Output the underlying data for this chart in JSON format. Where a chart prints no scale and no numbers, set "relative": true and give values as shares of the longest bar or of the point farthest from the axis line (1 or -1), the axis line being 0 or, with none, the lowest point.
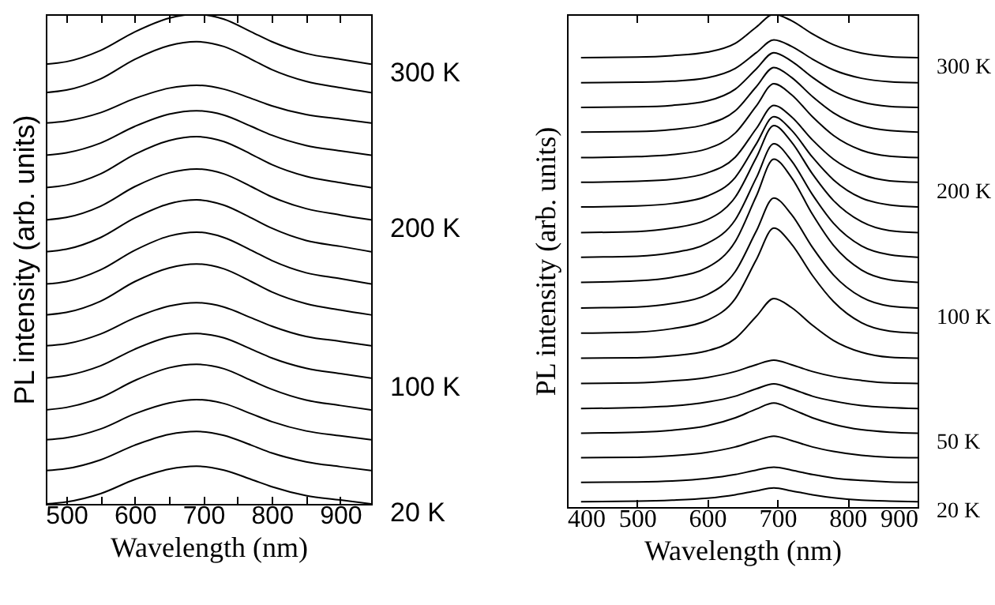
{
  "chart_data": [
    {
      "type": "line",
      "relative": true,
      "xlabel": "Wavelength (nm)",
      "ylabel": "PL intensity (arb. units)",
      "xlim": [
        470,
        945
      ],
      "xticks": [
        500,
        {
          "value": 550,
          "label": null
        },
        600,
        {
          "value": 650,
          "label": null
        },
        700,
        {
          "value": 750,
          "label": null
        },
        800,
        {
          "value": 850,
          "label": null
        },
        900
      ],
      "x": [
        470,
        500,
        550,
        600,
        650,
        690,
        730,
        770,
        800,
        850,
        900,
        945
      ],
      "series": [
        {
          "name": "300 K",
          "color": "#000000",
          "values": [
            0.898,
            0.903,
            0.926,
            0.964,
            0.992,
            1.0,
            0.99,
            0.964,
            0.944,
            0.92,
            0.908,
            0.898
          ]
        },
        {
          "color": "#000000",
          "values": [
            0.84,
            0.845,
            0.868,
            0.908,
            0.936,
            0.944,
            0.934,
            0.908,
            0.887,
            0.863,
            0.85,
            0.84
          ]
        },
        {
          "color": "#000000",
          "values": [
            0.778,
            0.782,
            0.799,
            0.828,
            0.849,
            0.855,
            0.847,
            0.828,
            0.813,
            0.795,
            0.786,
            0.778
          ]
        },
        {
          "color": "#000000",
          "values": [
            0.712,
            0.717,
            0.737,
            0.771,
            0.796,
            0.803,
            0.794,
            0.771,
            0.753,
            0.732,
            0.721,
            0.712
          ]
        },
        {
          "color": "#000000",
          "values": [
            0.646,
            0.651,
            0.674,
            0.714,
            0.742,
            0.75,
            0.74,
            0.714,
            0.693,
            0.669,
            0.656,
            0.646
          ]
        },
        {
          "name": "200 K",
          "color": "#000000",
          "values": [
            0.58,
            0.585,
            0.608,
            0.648,
            0.676,
            0.684,
            0.674,
            0.648,
            0.627,
            0.603,
            0.59,
            0.58
          ]
        },
        {
          "color": "#000000",
          "values": [
            0.515,
            0.52,
            0.544,
            0.584,
            0.613,
            0.621,
            0.61,
            0.584,
            0.563,
            0.538,
            0.526,
            0.515
          ]
        },
        {
          "color": "#000000",
          "values": [
            0.449,
            0.454,
            0.478,
            0.518,
            0.547,
            0.555,
            0.544,
            0.518,
            0.497,
            0.472,
            0.46,
            0.449
          ]
        },
        {
          "color": "#000000",
          "values": [
            0.386,
            0.391,
            0.414,
            0.454,
            0.482,
            0.49,
            0.48,
            0.454,
            0.433,
            0.409,
            0.396,
            0.386
          ]
        },
        {
          "color": "#000000",
          "values": [
            0.323,
            0.327,
            0.347,
            0.38,
            0.404,
            0.411,
            0.402,
            0.38,
            0.363,
            0.342,
            0.332,
            0.323
          ]
        },
        {
          "name": "100 K",
          "color": "#000000",
          "values": [
            0.257,
            0.262,
            0.282,
            0.316,
            0.341,
            0.348,
            0.339,
            0.316,
            0.298,
            0.277,
            0.266,
            0.257
          ]
        },
        {
          "color": "#000000",
          "values": [
            0.192,
            0.197,
            0.217,
            0.252,
            0.278,
            0.285,
            0.276,
            0.252,
            0.234,
            0.212,
            0.201,
            0.192
          ]
        },
        {
          "color": "#000000",
          "values": [
            0.131,
            0.135,
            0.153,
            0.184,
            0.206,
            0.213,
            0.205,
            0.184,
            0.168,
            0.149,
            0.139,
            0.131
          ]
        },
        {
          "color": "#000000",
          "values": [
            0.068,
            0.072,
            0.09,
            0.12,
            0.142,
            0.148,
            0.14,
            0.12,
            0.104,
            0.086,
            0.076,
            0.068
          ]
        },
        {
          "name": "20 K",
          "color": "#000000",
          "values": [
            0.0,
            0.004,
            0.021,
            0.05,
            0.071,
            0.077,
            0.069,
            0.05,
            0.035,
            0.017,
            0.008,
            0.0
          ]
        }
      ]
    },
    {
      "type": "line",
      "relative": true,
      "xlabel": "Wavelength (nm)",
      "ylabel": "PL intensity (arb. units)",
      "xlim": [
        400,
        900
      ],
      "xticks": [
        400,
        500,
        600,
        700,
        800,
        900
      ],
      "x": [
        420,
        500,
        550,
        600,
        640,
        670,
        695,
        720,
        750,
        780,
        820,
        860,
        900
      ],
      "series": [
        {
          "name": "300 K",
          "color": "#000000",
          "values": [
            0.912,
            0.913,
            0.916,
            0.923,
            0.941,
            0.974,
            1.0,
            0.987,
            0.96,
            0.938,
            0.921,
            0.914,
            0.912
          ]
        },
        {
          "color": "#000000",
          "values": [
            0.861,
            0.862,
            0.864,
            0.871,
            0.89,
            0.922,
            0.948,
            0.935,
            0.909,
            0.887,
            0.87,
            0.863,
            0.861
          ]
        },
        {
          "color": "#000000",
          "values": [
            0.811,
            0.812,
            0.815,
            0.824,
            0.848,
            0.889,
            0.922,
            0.905,
            0.872,
            0.844,
            0.822,
            0.813,
            0.811
          ]
        },
        {
          "color": "#000000",
          "values": [
            0.761,
            0.762,
            0.766,
            0.777,
            0.804,
            0.853,
            0.892,
            0.872,
            0.833,
            0.8,
            0.774,
            0.764,
            0.761
          ]
        },
        {
          "color": "#000000",
          "values": [
            0.709,
            0.711,
            0.715,
            0.727,
            0.759,
            0.814,
            0.859,
            0.837,
            0.792,
            0.754,
            0.724,
            0.712,
            0.709
          ]
        },
        {
          "name": "200 K",
          "color": "#000000",
          "values": [
            0.659,
            0.661,
            0.665,
            0.678,
            0.71,
            0.768,
            0.815,
            0.792,
            0.745,
            0.706,
            0.675,
            0.662,
            0.659
          ]
        },
        {
          "color": "#000000",
          "values": [
            0.609,
            0.611,
            0.616,
            0.631,
            0.669,
            0.737,
            0.792,
            0.765,
            0.71,
            0.664,
            0.627,
            0.613,
            0.609
          ]
        },
        {
          "color": "#000000",
          "values": [
            0.557,
            0.559,
            0.566,
            0.583,
            0.629,
            0.709,
            0.774,
            0.741,
            0.676,
            0.622,
            0.579,
            0.561,
            0.557
          ]
        },
        {
          "color": "#000000",
          "values": [
            0.507,
            0.509,
            0.516,
            0.535,
            0.583,
            0.668,
            0.737,
            0.703,
            0.634,
            0.576,
            0.53,
            0.512,
            0.507
          ]
        },
        {
          "color": "#000000",
          "values": [
            0.456,
            0.459,
            0.466,
            0.486,
            0.539,
            0.631,
            0.706,
            0.669,
            0.594,
            0.531,
            0.481,
            0.461,
            0.456
          ]
        },
        {
          "name": "100 K",
          "color": "#000000",
          "values": [
            0.404,
            0.406,
            0.413,
            0.431,
            0.478,
            0.56,
            0.627,
            0.594,
            0.527,
            0.471,
            0.426,
            0.408,
            0.404
          ]
        },
        {
          "color": "#000000",
          "values": [
            0.353,
            0.355,
            0.362,
            0.379,
            0.423,
            0.502,
            0.566,
            0.534,
            0.47,
            0.417,
            0.374,
            0.357,
            0.353
          ]
        },
        {
          "color": "#000000",
          "values": [
            0.302,
            0.303,
            0.307,
            0.317,
            0.342,
            0.387,
            0.423,
            0.405,
            0.369,
            0.338,
            0.314,
            0.304,
            0.302
          ]
        },
        {
          "color": "#000000",
          "values": [
            0.251,
            0.252,
            0.256,
            0.263,
            0.275,
            0.289,
            0.298,
            0.289,
            0.275,
            0.265,
            0.257,
            0.252,
            0.251
          ]
        },
        {
          "color": "#000000",
          "values": [
            0.2,
            0.202,
            0.205,
            0.213,
            0.225,
            0.24,
            0.25,
            0.24,
            0.225,
            0.215,
            0.206,
            0.202,
            0.2
          ]
        },
        {
          "name": "50 K",
          "color": "#000000",
          "values": [
            0.15,
            0.152,
            0.156,
            0.165,
            0.181,
            0.199,
            0.211,
            0.199,
            0.181,
            0.168,
            0.157,
            0.152,
            0.15
          ]
        },
        {
          "color": "#000000",
          "values": [
            0.1,
            0.101,
            0.104,
            0.111,
            0.122,
            0.135,
            0.144,
            0.135,
            0.122,
            0.113,
            0.105,
            0.101,
            0.1
          ]
        },
        {
          "color": "#000000",
          "values": [
            0.05,
            0.051,
            0.053,
            0.058,
            0.066,
            0.075,
            0.081,
            0.075,
            0.066,
            0.059,
            0.054,
            0.051,
            0.05
          ]
        },
        {
          "name": "20 K",
          "color": "#000000",
          "values": [
            0.011,
            0.012,
            0.014,
            0.018,
            0.025,
            0.033,
            0.039,
            0.033,
            0.025,
            0.019,
            0.014,
            0.012,
            0.011
          ]
        }
      ]
    }
  ]
}
